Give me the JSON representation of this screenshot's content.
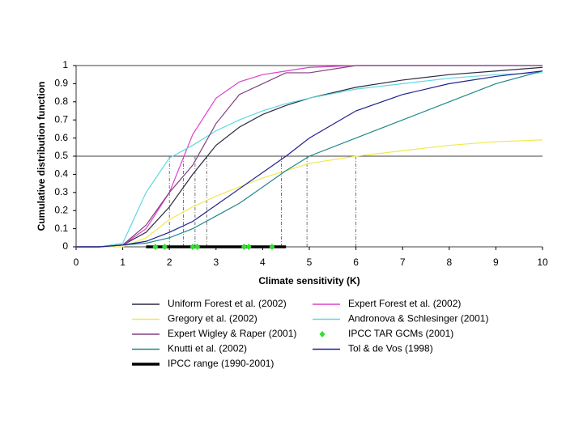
{
  "chart_data": {
    "type": "line",
    "xlabel": "Climate sensitivity (K)",
    "ylabel": "Cumulative distribution function",
    "x": [
      0,
      0.5,
      1,
      1.5,
      2,
      2.5,
      3,
      3.5,
      4,
      4.5,
      5,
      6,
      7,
      8,
      9,
      10
    ],
    "xlim": [
      0,
      10
    ],
    "xticks": [
      0,
      1,
      2,
      3,
      4,
      5,
      6,
      7,
      8,
      9,
      10
    ],
    "ylim": [
      0,
      1
    ],
    "yticks": [
      0,
      0.1,
      0.2,
      0.3,
      0.4,
      0.5,
      0.6,
      0.7,
      0.8,
      0.9,
      1
    ],
    "hlines": [
      0.5,
      1
    ],
    "vlines": [
      2.0,
      2.3,
      2.55,
      2.8,
      4.4,
      4.95,
      6.0
    ],
    "series": [
      {
        "name": "Uniform Forest et al. (2002)",
        "color": "#2a2a40",
        "style": "line",
        "values": [
          0,
          0,
          0.01,
          0.08,
          0.22,
          0.4,
          0.56,
          0.66,
          0.73,
          0.78,
          0.82,
          0.88,
          0.92,
          0.95,
          0.97,
          0.99
        ]
      },
      {
        "name": "Expert Forest et al. (2002)",
        "color": "#e040c8",
        "style": "line",
        "values": [
          0,
          0,
          0.01,
          0.1,
          0.3,
          0.62,
          0.82,
          0.91,
          0.95,
          0.97,
          0.99,
          1,
          1,
          1,
          1,
          1
        ]
      },
      {
        "name": "Gregory et al. (2002)",
        "color": "#f0e850",
        "style": "line",
        "values": [
          0,
          0,
          0,
          0.05,
          0.15,
          0.22,
          0.28,
          0.33,
          0.38,
          0.42,
          0.46,
          0.5,
          0.53,
          0.56,
          0.58,
          0.59
        ]
      },
      {
        "name": "Andronova & Schlesinger (2001)",
        "color": "#60d8e0",
        "style": "line",
        "values": [
          0,
          0,
          0.02,
          0.3,
          0.49,
          0.56,
          0.64,
          0.7,
          0.75,
          0.79,
          0.82,
          0.87,
          0.9,
          0.93,
          0.95,
          0.96
        ]
      },
      {
        "name": "Expert Wigley & Raper (2001)",
        "color": "#804080",
        "style": "line",
        "values": [
          0,
          0,
          0.01,
          0.12,
          0.3,
          0.45,
          0.68,
          0.84,
          0.9,
          0.96,
          0.96,
          1,
          1,
          1,
          1,
          1
        ]
      },
      {
        "name": "IPCC TAR GCMs (2001)",
        "color": "#30e030",
        "style": "markers",
        "x": [
          1.7,
          1.9,
          2.5,
          2.6,
          3.6,
          3.7,
          4.2
        ],
        "values": [
          0,
          0,
          0,
          0,
          0,
          0,
          0
        ]
      },
      {
        "name": "Knutti et al. (2002)",
        "color": "#208888",
        "style": "line",
        "values": [
          0,
          0,
          0.01,
          0.02,
          0.05,
          0.1,
          0.17,
          0.24,
          0.33,
          0.42,
          0.5,
          0.6,
          0.7,
          0.8,
          0.9,
          0.97
        ]
      },
      {
        "name": "Tol & de Vos (1998)",
        "color": "#202090",
        "style": "line",
        "values": [
          0,
          0,
          0.01,
          0.03,
          0.08,
          0.14,
          0.23,
          0.32,
          0.41,
          0.5,
          0.6,
          0.75,
          0.84,
          0.9,
          0.94,
          0.97
        ]
      },
      {
        "name": "IPCC range (1990-2001)",
        "color": "#000000",
        "style": "thick",
        "x": [
          1.5,
          4.5
        ],
        "values": [
          0,
          0
        ]
      }
    ]
  }
}
